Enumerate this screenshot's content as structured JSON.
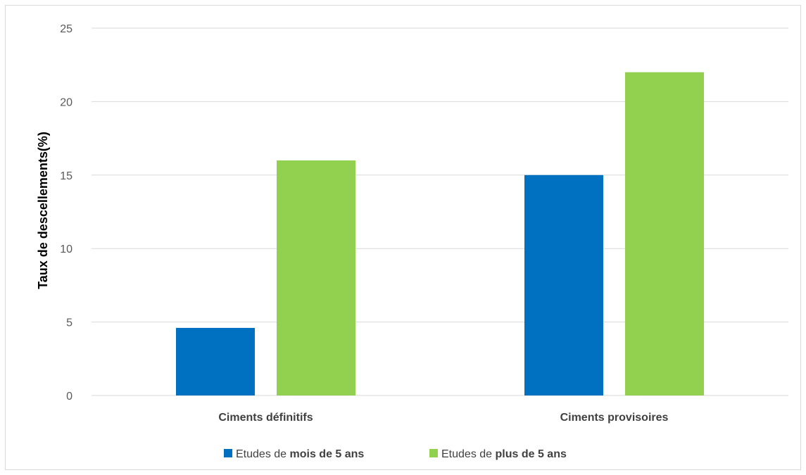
{
  "chart_data": {
    "type": "bar",
    "title": "",
    "xlabel": "",
    "ylabel": "Taux de descellements(%)",
    "ylim": [
      0,
      25
    ],
    "yticks": [
      0,
      5,
      10,
      15,
      20,
      25
    ],
    "grid": true,
    "legend_position": "bottom",
    "categories": [
      "Ciments définitifs",
      "Ciments provisoires"
    ],
    "series": [
      {
        "name": "Etudes de mois de 5 ans",
        "name_prefix": "Etudes de ",
        "name_bold": "mois de 5 ans",
        "color": "#0070c0",
        "values": [
          4.6,
          15
        ]
      },
      {
        "name": "Etudes de plus de 5 ans",
        "name_prefix": "Etudes de ",
        "name_bold": "plus de 5 ans",
        "color": "#92d050",
        "values": [
          16,
          22
        ]
      }
    ]
  }
}
